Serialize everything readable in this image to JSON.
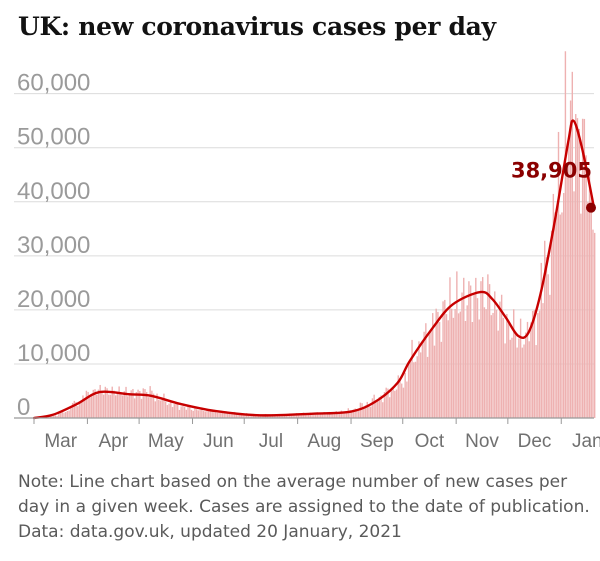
{
  "title": "UK: new coronavirus cases per day",
  "note": "Note: Line chart based on the average number of new cases per day in a given week. Cases are assigned to the date of publication. Data: data.gov.uk, updated 20 January, 2021",
  "colors": {
    "bars": "#eeb1b1",
    "line": "#c70000",
    "callout": "#8b0000",
    "gridline": "#dcdcdc",
    "baseline": "#999999"
  },
  "chart_data": {
    "type": "bar",
    "title": "UK: new coronavirus cases per day",
    "xlabel": "",
    "ylabel": "",
    "ylim": [
      0,
      64000
    ],
    "yticks": [
      0,
      10000,
      20000,
      30000,
      40000,
      50000,
      60000
    ],
    "ytick_labels": [
      "0",
      "10,000",
      "20,000",
      "30,000",
      "40,000",
      "50,000",
      "60,000"
    ],
    "xtick_labels": [
      "Mar",
      "Apr",
      "May",
      "Jun",
      "Jul",
      "Aug",
      "Sep",
      "Oct",
      "Nov",
      "Dec",
      "Jan"
    ],
    "grid": true,
    "x_start_date": "2020-03-01",
    "x_end_date": "2021-01-20",
    "series": [
      {
        "type": "bar",
        "values_by_week": [
          {
            "date": "2020-03-01",
            "value": 50
          },
          {
            "date": "2020-03-08",
            "value": 400
          },
          {
            "date": "2020-03-15",
            "value": 1200
          },
          {
            "date": "2020-03-22",
            "value": 2800
          },
          {
            "date": "2020-03-29",
            "value": 4400
          },
          {
            "date": "2020-04-05",
            "value": 5200
          },
          {
            "date": "2020-04-12",
            "value": 4900
          },
          {
            "date": "2020-04-19",
            "value": 4800
          },
          {
            "date": "2020-04-26",
            "value": 4700
          },
          {
            "date": "2020-05-03",
            "value": 4900
          },
          {
            "date": "2020-05-10",
            "value": 3600
          },
          {
            "date": "2020-05-17",
            "value": 2600
          },
          {
            "date": "2020-05-24",
            "value": 2000
          },
          {
            "date": "2020-05-31",
            "value": 1600
          },
          {
            "date": "2020-06-07",
            "value": 1400
          },
          {
            "date": "2020-06-14",
            "value": 1200
          },
          {
            "date": "2020-06-21",
            "value": 1000
          },
          {
            "date": "2020-06-28",
            "value": 800
          },
          {
            "date": "2020-07-05",
            "value": 600
          },
          {
            "date": "2020-07-12",
            "value": 600
          },
          {
            "date": "2020-07-19",
            "value": 650
          },
          {
            "date": "2020-07-26",
            "value": 750
          },
          {
            "date": "2020-08-02",
            "value": 800
          },
          {
            "date": "2020-08-09",
            "value": 900
          },
          {
            "date": "2020-08-16",
            "value": 1000
          },
          {
            "date": "2020-08-23",
            "value": 1150
          },
          {
            "date": "2020-08-30",
            "value": 1500
          },
          {
            "date": "2020-09-06",
            "value": 2500
          },
          {
            "date": "2020-09-13",
            "value": 3600
          },
          {
            "date": "2020-09-20",
            "value": 5000
          },
          {
            "date": "2020-09-27",
            "value": 6800
          },
          {
            "date": "2020-10-04",
            "value": 11500
          },
          {
            "date": "2020-10-11",
            "value": 15000
          },
          {
            "date": "2020-10-18",
            "value": 18000
          },
          {
            "date": "2020-10-25",
            "value": 21000
          },
          {
            "date": "2020-11-01",
            "value": 22000
          },
          {
            "date": "2020-11-08",
            "value": 22500
          },
          {
            "date": "2020-11-15",
            "value": 23000
          },
          {
            "date": "2020-11-22",
            "value": 20000
          },
          {
            "date": "2020-11-29",
            "value": 16500
          },
          {
            "date": "2020-12-06",
            "value": 15000
          },
          {
            "date": "2020-12-13",
            "value": 18000
          },
          {
            "date": "2020-12-20",
            "value": 28000
          },
          {
            "date": "2020-12-27",
            "value": 42000
          },
          {
            "date": "2021-01-03",
            "value": 55000
          },
          {
            "date": "2021-01-10",
            "value": 50000
          },
          {
            "date": "2021-01-17",
            "value": 38905
          }
        ]
      },
      {
        "type": "line",
        "values_by_week": [
          {
            "date": "2020-03-01",
            "value": 0
          },
          {
            "date": "2020-03-12",
            "value": 600
          },
          {
            "date": "2020-03-26",
            "value": 2600
          },
          {
            "date": "2020-04-08",
            "value": 4800
          },
          {
            "date": "2020-04-25",
            "value": 4400
          },
          {
            "date": "2020-05-08",
            "value": 4100
          },
          {
            "date": "2020-05-25",
            "value": 2600
          },
          {
            "date": "2020-06-14",
            "value": 1300
          },
          {
            "date": "2020-07-10",
            "value": 500
          },
          {
            "date": "2020-08-10",
            "value": 800
          },
          {
            "date": "2020-09-01",
            "value": 1200
          },
          {
            "date": "2020-09-15",
            "value": 3000
          },
          {
            "date": "2020-09-28",
            "value": 6500
          },
          {
            "date": "2020-10-05",
            "value": 10500
          },
          {
            "date": "2020-10-18",
            "value": 16500
          },
          {
            "date": "2020-10-30",
            "value": 21000
          },
          {
            "date": "2020-11-15",
            "value": 23300
          },
          {
            "date": "2020-11-22",
            "value": 22000
          },
          {
            "date": "2020-11-30",
            "value": 18500
          },
          {
            "date": "2020-12-07",
            "value": 15200
          },
          {
            "date": "2020-12-13",
            "value": 15800
          },
          {
            "date": "2020-12-20",
            "value": 23000
          },
          {
            "date": "2020-12-28",
            "value": 36000
          },
          {
            "date": "2021-01-05",
            "value": 51000
          },
          {
            "date": "2021-01-08",
            "value": 55000
          },
          {
            "date": "2021-01-13",
            "value": 50000
          },
          {
            "date": "2021-01-20",
            "value": 38905
          }
        ]
      }
    ],
    "annotations": [
      {
        "date": "2021-01-20",
        "value": 38905,
        "label": "38,905"
      }
    ]
  }
}
